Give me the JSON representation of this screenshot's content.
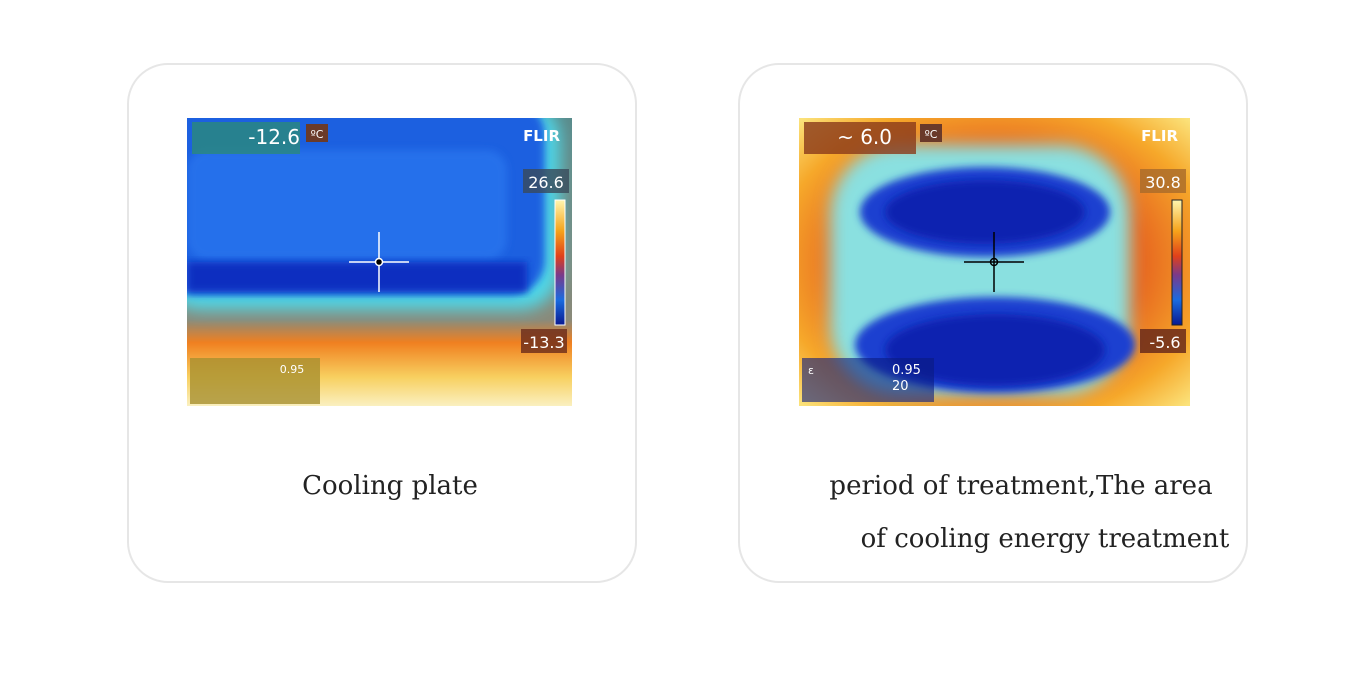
{
  "cards": [
    {
      "image": {
        "spot_temp": "-12.6",
        "unit": "ºC",
        "brand": "FLIR",
        "max": "26.6",
        "min": "-13.3",
        "emissivity": "0.95"
      },
      "caption": [
        "Cooling plate"
      ]
    },
    {
      "image": {
        "spot_temp": "~ 6.0",
        "unit": "ºC",
        "brand": "FLIR",
        "max": "30.8",
        "min": "-5.6",
        "epsilon": "ε",
        "emissivity": "0.95",
        "reflected": "20"
      },
      "caption": [
        "period of treatment,The area",
        "of cooling energy treatment"
      ]
    }
  ]
}
